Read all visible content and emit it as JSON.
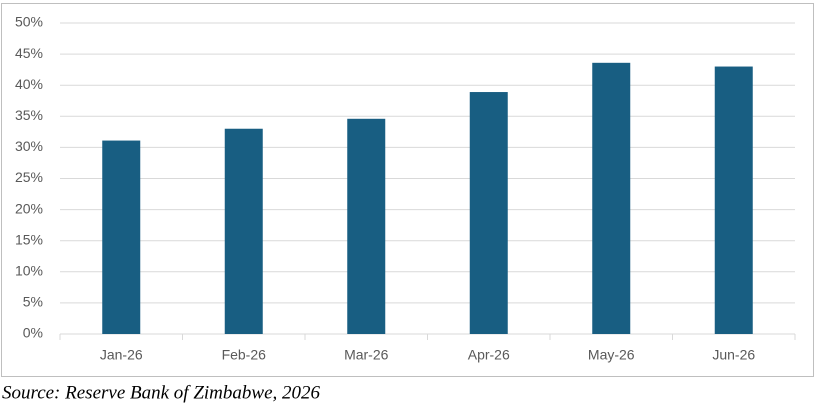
{
  "chart_data": {
    "type": "bar",
    "categories": [
      "Jan-26",
      "Feb-26",
      "Mar-26",
      "Apr-26",
      "May-26",
      "Jun-26"
    ],
    "values": [
      31.1,
      33.0,
      34.6,
      38.9,
      43.6,
      43.0
    ],
    "color": "#185e82",
    "ylim": [
      0,
      50
    ],
    "yticks": [
      {
        "value": 0,
        "label": "0%"
      },
      {
        "value": 5,
        "label": "5%"
      },
      {
        "value": 10,
        "label": "10%"
      },
      {
        "value": 15,
        "label": "15%"
      },
      {
        "value": 20,
        "label": "20%"
      },
      {
        "value": 25,
        "label": "25%"
      },
      {
        "value": 30,
        "label": "30%"
      },
      {
        "value": 35,
        "label": "35%"
      },
      {
        "value": 40,
        "label": "40%"
      },
      {
        "value": 45,
        "label": "45%"
      },
      {
        "value": 50,
        "label": "50%"
      }
    ],
    "grid": true,
    "source": "Source: Reserve Bank of Zimbabwe, 2026"
  }
}
